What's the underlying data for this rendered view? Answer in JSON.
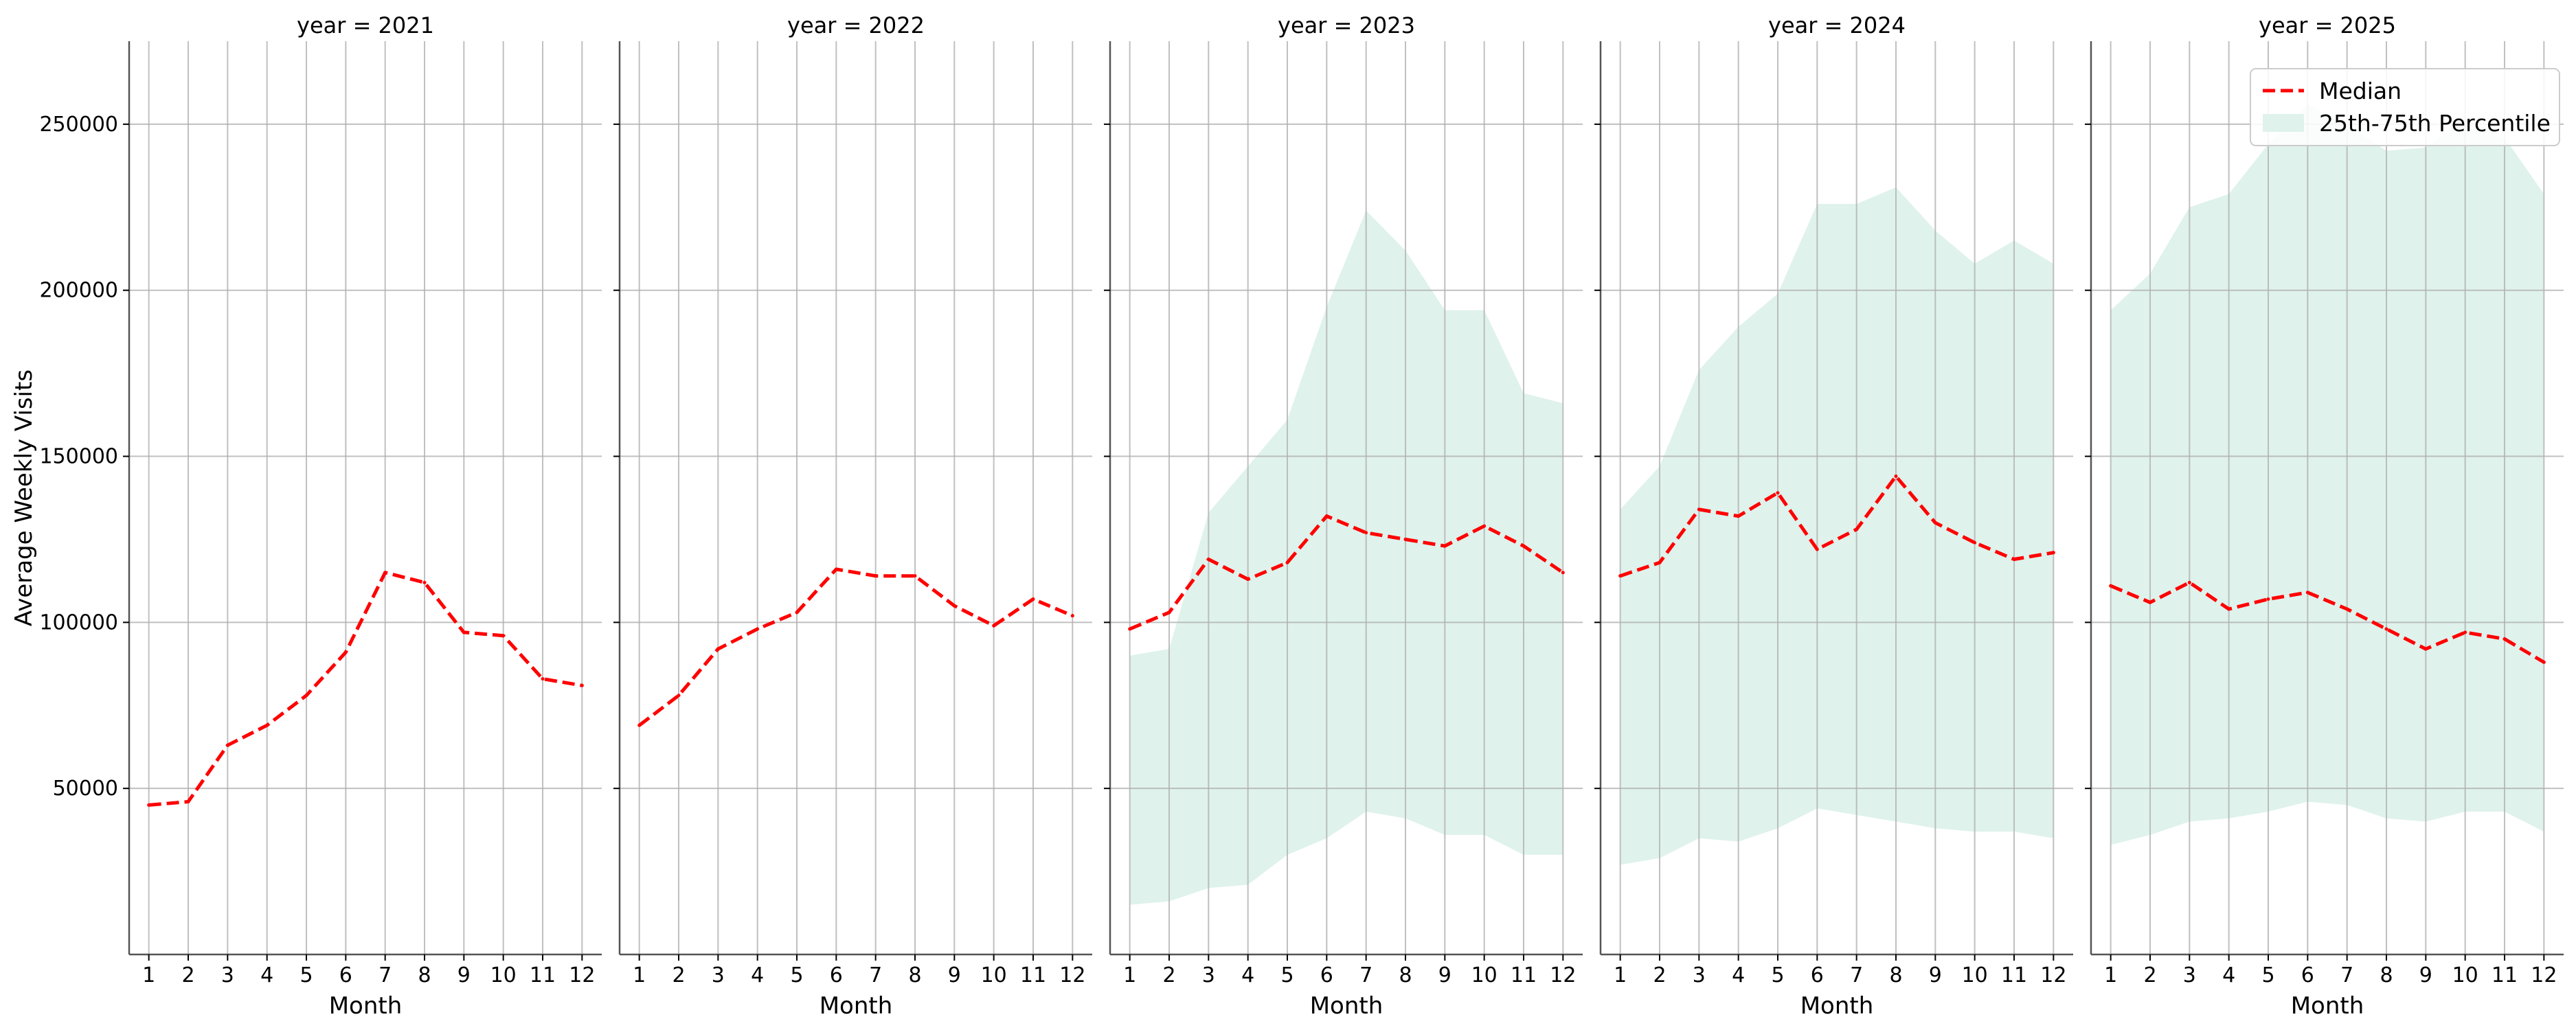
{
  "chart_data": {
    "type": "line",
    "ylabel": "Average Weekly Visits",
    "xlabel": "Month",
    "ylim": [
      0,
      275000
    ],
    "yticks": [
      50000,
      100000,
      150000,
      200000,
      250000
    ],
    "ytick_labels": [
      "50000",
      "100000",
      "150000",
      "200000",
      "250000"
    ],
    "xlim": [
      0.5,
      12.5
    ],
    "x": [
      1,
      2,
      3,
      4,
      5,
      6,
      7,
      8,
      9,
      10,
      11,
      12
    ],
    "xtick_labels": [
      "1",
      "2",
      "3",
      "4",
      "5",
      "6",
      "7",
      "8",
      "9",
      "10",
      "11",
      "12"
    ],
    "grid": true,
    "shared_y": true,
    "legend": {
      "placement": "top-right",
      "median_label": "Median",
      "band_label": "25th-75th Percentile"
    },
    "colors": {
      "median": "#ff0000",
      "band": "#dff2ec",
      "grid": "#b0b0b0",
      "axis": "#555555"
    },
    "panels": [
      {
        "title": "year = 2021",
        "median": [
          45000,
          46000,
          63000,
          69000,
          78000,
          91000,
          115000,
          112000,
          97000,
          96000,
          83000,
          81000
        ],
        "p25": null,
        "p75": null
      },
      {
        "title": "year = 2022",
        "median": [
          69000,
          78000,
          92000,
          98000,
          103000,
          116000,
          114000,
          114000,
          105000,
          99000,
          107000,
          102000
        ],
        "p25": null,
        "p75": null
      },
      {
        "title": "year = 2023",
        "median": [
          98000,
          103000,
          119000,
          113000,
          118000,
          132000,
          127000,
          125000,
          123000,
          129000,
          123000,
          115000
        ],
        "p25": [
          15000,
          16000,
          20000,
          21000,
          30000,
          35000,
          43000,
          41000,
          36000,
          36000,
          30000,
          30000
        ],
        "p75": [
          90000,
          92000,
          133000,
          147000,
          161000,
          195000,
          224000,
          212000,
          194000,
          194000,
          169000,
          166000
        ]
      },
      {
        "title": "year = 2024",
        "median": [
          114000,
          118000,
          134000,
          132000,
          139000,
          122000,
          128000,
          144000,
          130000,
          124000,
          119000,
          121000
        ],
        "p25": [
          27000,
          29000,
          35000,
          34000,
          38000,
          44000,
          42000,
          40000,
          38000,
          37000,
          37000,
          35000
        ],
        "p75": [
          134000,
          147000,
          176000,
          189000,
          199000,
          226000,
          226000,
          231000,
          218000,
          208000,
          215000,
          208000
        ]
      },
      {
        "title": "year = 2025",
        "median": [
          111000,
          106000,
          112000,
          104000,
          107000,
          109000,
          104000,
          98000,
          92000,
          97000,
          95000,
          88000
        ],
        "p25": [
          33000,
          36000,
          40000,
          41000,
          43000,
          46000,
          45000,
          41000,
          40000,
          43000,
          43000,
          37000
        ],
        "p75": [
          194000,
          205000,
          225000,
          229000,
          244000,
          256000,
          250000,
          242000,
          243000,
          252000,
          246000,
          229000
        ]
      }
    ]
  }
}
